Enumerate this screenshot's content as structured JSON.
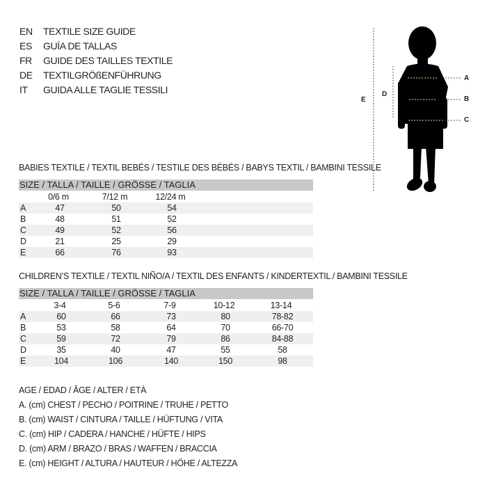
{
  "header": {
    "lines": [
      {
        "code": "EN",
        "text": "TEXTILE SIZE GUIDE"
      },
      {
        "code": "ES",
        "text": "GUÍA DE TALLAS"
      },
      {
        "code": "FR",
        "text": "GUIDE DES TAILLES TEXTILE"
      },
      {
        "code": "DE",
        "text": "TEXTILGRÖßENFÜHRUNG"
      },
      {
        "code": "IT",
        "text": "GUIDA ALLE TAGLIE TESSILI"
      }
    ]
  },
  "figure": {
    "labels": {
      "a": "A",
      "b": "B",
      "c": "C",
      "d": "D",
      "e": "E"
    }
  },
  "babies": {
    "title": "BABIES TEXTILE / TEXTIL BEBÉS / TESTILE DES BÉBÉS / BABYS TEXTIL / BAMBINI TESSILE",
    "size_header": "SIZE / TALLA / TAILLE / GRÖSSE / TAGLIA",
    "columns": [
      "0/6 m",
      "7/12 m",
      "12/24 m"
    ],
    "rows": [
      {
        "label": "A",
        "values": [
          "47",
          "50",
          "54"
        ]
      },
      {
        "label": "B",
        "values": [
          "48",
          "51",
          "52"
        ]
      },
      {
        "label": "C",
        "values": [
          "49",
          "52",
          "56"
        ]
      },
      {
        "label": "D",
        "values": [
          "21",
          "25",
          "29"
        ]
      },
      {
        "label": "E",
        "values": [
          "66",
          "76",
          "93"
        ]
      }
    ]
  },
  "children": {
    "title": "CHILDREN’S TEXTILE / TEXTIL NIÑO/A / TEXTIL DES ENFANTS / KINDERTEXTIL / BAMBINI TESSILE",
    "size_header": "SIZE / TALLA / TAILLE / GRÖSSE / TAGLIA",
    "columns": [
      "3-4",
      "5-6",
      "7-9",
      "10-12",
      "13-14"
    ],
    "rows": [
      {
        "label": "A",
        "values": [
          "60",
          "66",
          "73",
          "80",
          "78-82"
        ]
      },
      {
        "label": "B",
        "values": [
          "53",
          "58",
          "64",
          "70",
          "66-70"
        ]
      },
      {
        "label": "C",
        "values": [
          "59",
          "72",
          "79",
          "86",
          "84-88"
        ]
      },
      {
        "label": "D",
        "values": [
          "35",
          "40",
          "47",
          "55",
          "58"
        ]
      },
      {
        "label": "E",
        "values": [
          "104",
          "106",
          "140",
          "150",
          "98"
        ]
      }
    ]
  },
  "legend": [
    "AGE / EDAD / ÂGE / ALTER / ETÀ",
    "A. (cm) CHEST / PECHO / POITRINE / TRUHE / PETTO",
    "B. (cm) WAIST / CINTURA / TAILLE / HÜFTUNG / VITA",
    "C. (cm) HIP / CADERA / HANCHE / HÜFTE / HIPS",
    "D. (cm) ARM / BRAZO / BRAS / WAFFEN / BRACCIA",
    "E. (cm) HEIGHT / ALTURA / HAUTEUR / HÖHE / ALTEZZA"
  ]
}
